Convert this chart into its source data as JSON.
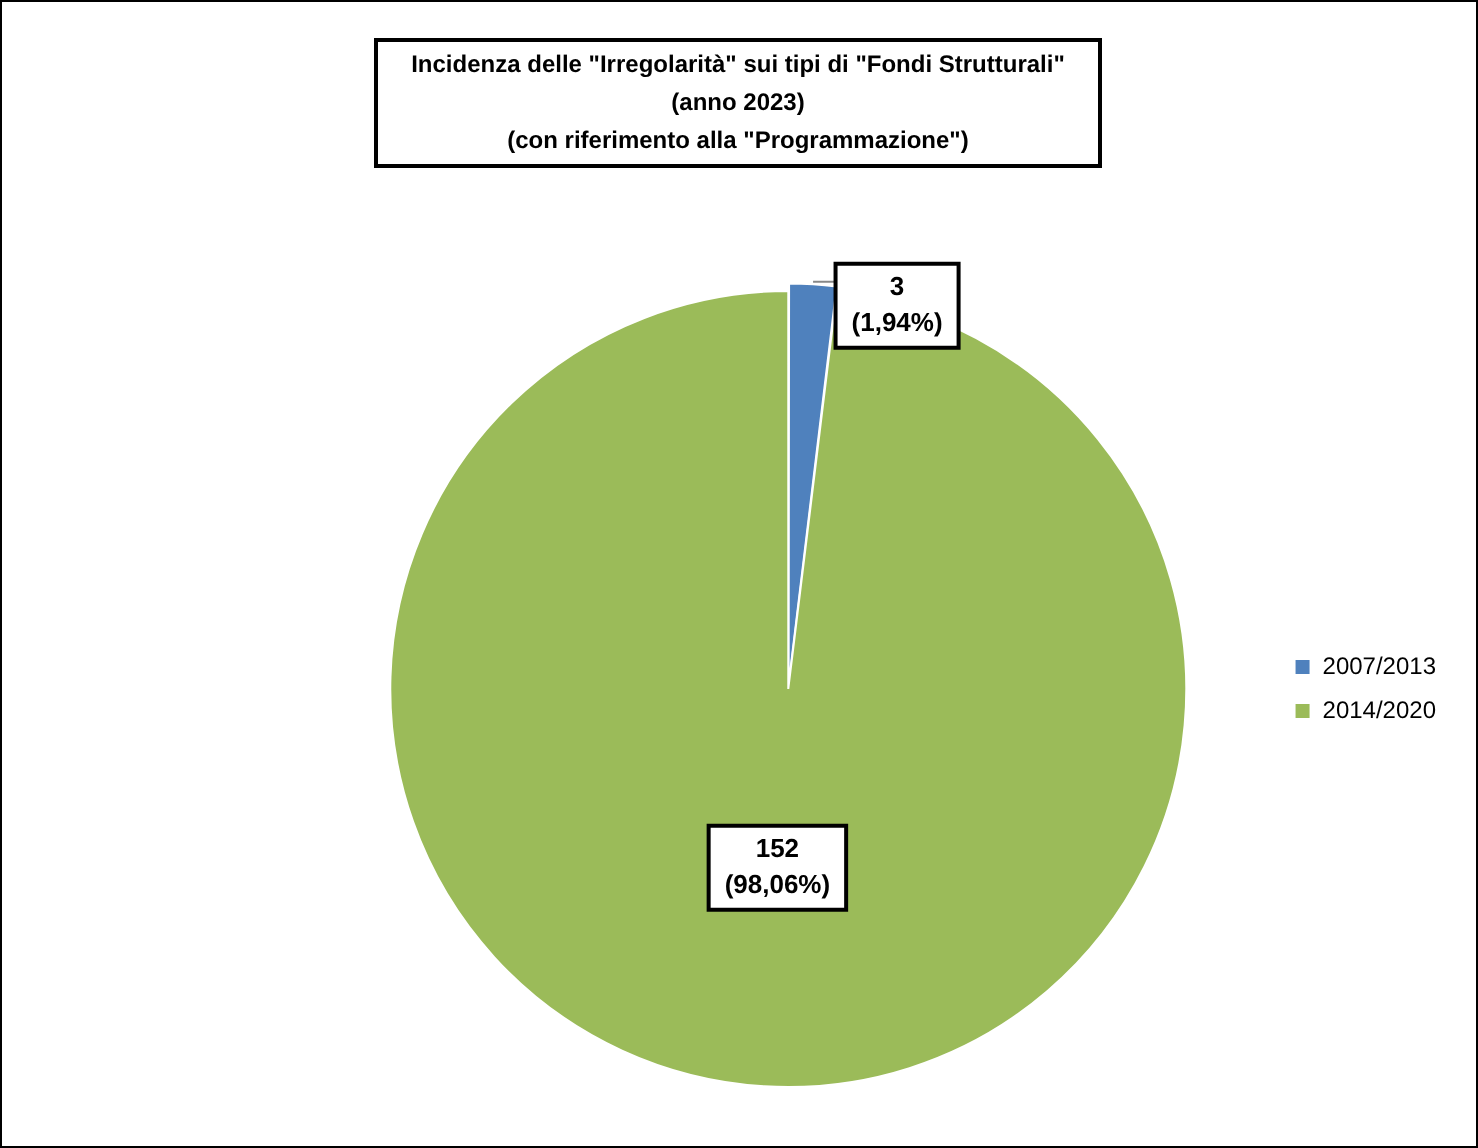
{
  "chart_data": {
    "type": "pie",
    "title": "Incidenza delle \"Irregolarità\" sui tipi di \"Fondi Strutturali\"\n(anno 2023)\n(con riferimento alla \"Programmazione\")",
    "categories": [
      "2007/2013",
      "2014/2020"
    ],
    "values": [
      3,
      152
    ],
    "colors": [
      "#4f81bd",
      "#9bbb59"
    ],
    "value_labels": [
      "3\n(1,94%)",
      "152\n(98,06%)"
    ],
    "legend": "right"
  }
}
